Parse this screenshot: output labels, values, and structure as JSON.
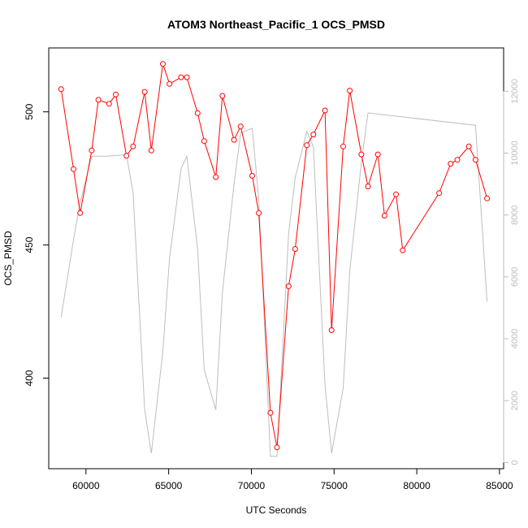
{
  "chart_data": {
    "type": "line",
    "title": "ATOM3 Northeast_Pacific_1 OCS_PMSD",
    "xlabel": "UTC Seconds",
    "ylabel": "OCS_PMSD",
    "xlim": [
      57750,
      85250
    ],
    "ylim": [
      366,
      524
    ],
    "y2lim": [
      -200,
      13400
    ],
    "x_ticks": [
      60000,
      65000,
      70000,
      75000,
      80000,
      85000
    ],
    "y_ticks": [
      400,
      450,
      500
    ],
    "y2_ticks": [
      0,
      2000,
      4000,
      6000,
      8000,
      10000,
      12000
    ],
    "grid": false,
    "colors": {
      "primary": "#ff0000",
      "secondary": "#bebebe"
    },
    "series": [
      {
        "axis": "left",
        "style": "line-with-open-circles",
        "color": "#ff0000",
        "x": [
          58500,
          59250,
          59650,
          60350,
          60750,
          61400,
          61800,
          62450,
          62850,
          63550,
          63950,
          64650,
          65050,
          65750,
          66100,
          66750,
          67150,
          67850,
          68250,
          68950,
          69350,
          70050,
          70450,
          71150,
          71550,
          72250,
          72650,
          73350,
          73750,
          74450,
          74850,
          75550,
          75950,
          76650,
          77050,
          77650,
          78050,
          78750,
          79150,
          81350,
          82050,
          82450,
          83150,
          83550,
          84250
        ],
        "y": [
          508.5,
          478.5,
          462,
          485.5,
          504.5,
          503,
          506.5,
          483.5,
          487,
          507.5,
          485.5,
          518,
          510.5,
          513,
          513,
          499.5,
          489,
          475.5,
          506,
          489.5,
          494.5,
          476,
          462,
          387,
          374,
          434.5,
          448.5,
          487.5,
          491.5,
          500.5,
          418,
          487,
          508,
          484,
          472,
          484,
          461,
          469,
          448,
          469.5,
          480.5,
          482,
          487,
          482,
          467.5
        ]
      },
      {
        "axis": "right",
        "style": "line",
        "color": "#bebebe",
        "x": [
          58500,
          59250,
          59650,
          60350,
          61250,
          62450,
          62850,
          63550,
          63950,
          64650,
          65050,
          65750,
          66100,
          66750,
          67150,
          67850,
          68250,
          68950,
          69350,
          70050,
          70450,
          71150,
          71550,
          72250,
          72650,
          73350,
          73750,
          74450,
          74850,
          75550,
          75950,
          76650,
          77050,
          83550,
          84250
        ],
        "y": [
          4700,
          7200,
          8400,
          9900,
          9900,
          9950,
          8700,
          1700,
          300,
          3600,
          6600,
          9500,
          9900,
          6900,
          3000,
          1700,
          5500,
          9000,
          10650,
          10800,
          8500,
          200,
          200,
          7400,
          9200,
          10700,
          10200,
          2500,
          300,
          2400,
          6200,
          9700,
          11300,
          10900,
          5200
        ]
      }
    ]
  }
}
